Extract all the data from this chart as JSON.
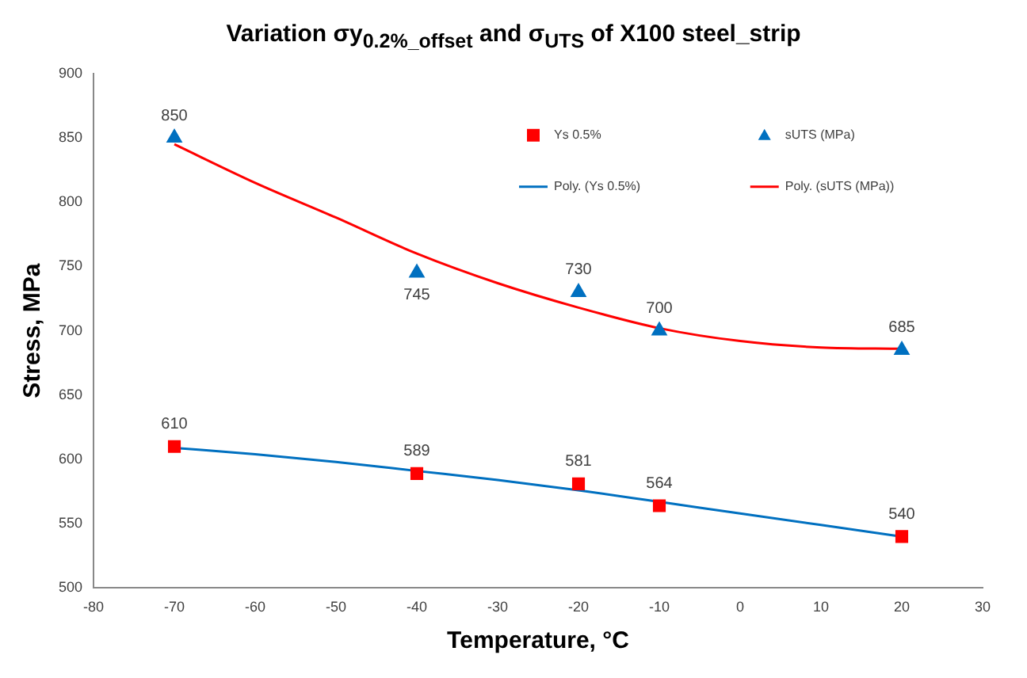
{
  "chart_data": {
    "type": "scatter",
    "title": "Variation σy$_{0.2%_offset}$ and σ$_{UTS}$ of X100 steel_strip",
    "xlabel": "Temperature, °C",
    "ylabel": "Stress, MPa",
    "xlim": [
      -80,
      30
    ],
    "xticks": [
      -80,
      -70,
      -60,
      -50,
      -40,
      -30,
      -20,
      -10,
      0,
      10,
      20,
      30
    ],
    "ylim": [
      500,
      900
    ],
    "yticks": [
      500,
      550,
      600,
      650,
      700,
      750,
      800,
      850,
      900
    ],
    "grid": false,
    "legend": "top right",
    "series": [
      {
        "name": "Ys 0.5%",
        "type": "scatter",
        "marker": "square",
        "color": "#ff0000",
        "x": [
          -70,
          -40,
          -20,
          -10,
          20
        ],
        "values": [
          610,
          589,
          581,
          564,
          540
        ],
        "value_labels": [
          "610",
          "589",
          "581",
          "564",
          "540"
        ]
      },
      {
        "name": "sUTS (MPa)",
        "type": "scatter",
        "marker": "triangle",
        "color": "#0070c0",
        "x": [
          -70,
          -40,
          -20,
          -10,
          20
        ],
        "values": [
          850,
          745,
          730,
          700,
          685
        ],
        "value_labels": [
          "850",
          "745",
          "730",
          "700",
          "685"
        ]
      },
      {
        "name": "Poly. (Ys 0.5%)",
        "type": "line",
        "marker": "none",
        "color": "#0070c0",
        "x": [
          -70,
          -60,
          -50,
          -40,
          -30,
          -20,
          -10,
          0,
          10,
          20
        ],
        "values": [
          609,
          604,
          598,
          591,
          584,
          576,
          567,
          558,
          549,
          540
        ]
      },
      {
        "name": "Poly. (sUTS (MPa))",
        "type": "line",
        "marker": "none",
        "color": "#ff0000",
        "x": [
          -70,
          -60,
          -50,
          -40,
          -30,
          -20,
          -10,
          0,
          10,
          20
        ],
        "values": [
          845,
          815,
          788,
          760,
          737,
          718,
          702,
          692,
          687,
          686
        ]
      }
    ]
  }
}
